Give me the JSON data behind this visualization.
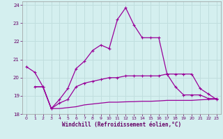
{
  "xlabel": "Windchill (Refroidissement éolien,°C)",
  "bg_color": "#d4efef",
  "grid_color": "#c0dede",
  "line_color": "#990099",
  "xlim": [
    -0.5,
    23.5
  ],
  "ylim": [
    18,
    24.2
  ],
  "yticks": [
    18,
    19,
    20,
    21,
    22,
    23,
    24
  ],
  "xticks": [
    0,
    1,
    2,
    3,
    4,
    5,
    6,
    7,
    8,
    9,
    10,
    11,
    12,
    13,
    14,
    15,
    16,
    17,
    18,
    19,
    20,
    21,
    22,
    23
  ],
  "line1_x": [
    0,
    1,
    2,
    3,
    4,
    5,
    6,
    7,
    8,
    9,
    10,
    11,
    12,
    13,
    14,
    15,
    16,
    17,
    18,
    19,
    20,
    21,
    22,
    23
  ],
  "line1_y": [
    20.6,
    20.3,
    19.5,
    18.3,
    18.8,
    19.4,
    20.5,
    20.9,
    21.5,
    21.8,
    21.6,
    23.2,
    23.85,
    22.9,
    22.2,
    22.2,
    22.2,
    20.2,
    19.5,
    19.05,
    19.05,
    19.05,
    18.85,
    18.85
  ],
  "line2_x": [
    1,
    2,
    3,
    4,
    5,
    6,
    7,
    8,
    9,
    10,
    11,
    12,
    13,
    14,
    15,
    16,
    17,
    18,
    19,
    20,
    21,
    22,
    23
  ],
  "line2_y": [
    19.5,
    19.5,
    18.3,
    18.6,
    18.8,
    19.5,
    19.7,
    19.8,
    19.9,
    20.0,
    20.0,
    20.1,
    20.1,
    20.1,
    20.1,
    20.1,
    20.2,
    20.2,
    20.2,
    20.2,
    19.4,
    19.1,
    18.8
  ],
  "line3_x": [
    1,
    2,
    3,
    4,
    5,
    6,
    7,
    8,
    9,
    10,
    11,
    12,
    13,
    14,
    15,
    16,
    17,
    18,
    19,
    20,
    21,
    22,
    23
  ],
  "line3_y": [
    19.5,
    19.5,
    18.3,
    18.3,
    18.35,
    18.4,
    18.5,
    18.55,
    18.6,
    18.65,
    18.65,
    18.67,
    18.68,
    18.7,
    18.7,
    18.72,
    18.75,
    18.75,
    18.75,
    18.75,
    18.78,
    18.8,
    18.82
  ]
}
